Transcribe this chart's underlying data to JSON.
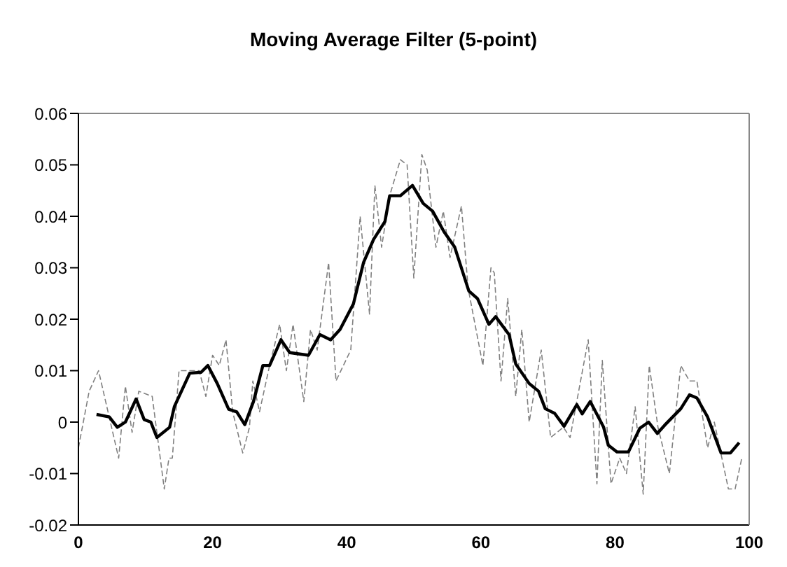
{
  "chart_data": {
    "type": "line",
    "title": "Moving Average Filter (5-point)",
    "xlim": [
      0,
      100
    ],
    "xticks": [
      0,
      20,
      40,
      60,
      80,
      100
    ],
    "ylim": [
      -0.02,
      0.06
    ],
    "yticks": [
      {
        "value": -0.02,
        "label": "-0.02"
      },
      {
        "value": -0.01,
        "label": "-0.01"
      },
      {
        "value": 0,
        "label": "0"
      },
      {
        "value": 0.01,
        "label": "0.01"
      },
      {
        "value": 0.02,
        "label": "0.02"
      },
      {
        "value": 0.03,
        "label": "0.03"
      },
      {
        "value": 0.04,
        "label": "0.04"
      },
      {
        "value": 0.05,
        "label": "0.05"
      },
      {
        "value": 0.06,
        "label": "0.06"
      }
    ],
    "grid": false,
    "legend": false,
    "marker": "none",
    "series": [
      {
        "color": "#808080",
        "line_style": "dashed",
        "x": [
          0,
          1.6,
          3,
          6,
          7,
          8,
          9,
          11,
          12.8,
          13.5,
          14,
          15,
          18,
          19,
          20,
          21,
          22,
          23,
          24.5,
          25.5,
          26,
          27,
          28.5,
          30,
          31,
          32,
          33.6,
          34.6,
          35.6,
          37.3,
          38.4,
          40.6,
          42,
          43.4,
          44.2,
          45.2,
          46.4,
          48,
          49,
          50,
          51.2,
          52,
          53.3,
          54.4,
          55.4,
          57.1,
          58.1,
          60.3,
          61.5,
          62,
          63,
          64,
          65.2,
          66.1,
          67.2,
          69,
          70.4,
          72.3,
          73.3,
          76,
          77.3,
          78.1,
          79.4,
          80.7,
          81.7,
          83,
          84.2,
          85.1,
          86.4,
          88.1,
          89.8,
          91.1,
          92.2,
          93.8,
          94.8,
          96.9,
          97.9,
          98.9
        ],
        "values": [
          -0.005,
          0.006,
          0.01,
          -0.007,
          0.007,
          -0.002,
          0.006,
          0.005,
          -0.013,
          -0.007,
          -0.007,
          0.01,
          0.01,
          0.005,
          0.013,
          0.011,
          0.016,
          0.002,
          -0.006,
          -0.001,
          0.008,
          0.002,
          0.011,
          0.019,
          0.01,
          0.019,
          0.004,
          0.018,
          0.014,
          0.031,
          0.008,
          0.014,
          0.04,
          0.021,
          0.046,
          0.034,
          0.044,
          0.051,
          0.05,
          0.028,
          0.052,
          0.049,
          0.034,
          0.041,
          0.032,
          0.042,
          0.026,
          0.011,
          0.03,
          0.029,
          0.008,
          0.024,
          0.005,
          0.018,
          0,
          0.014,
          -0.003,
          -0.001,
          -0.003,
          0.016,
          -0.012,
          0.012,
          -0.012,
          -0.007,
          -0.01,
          0.003,
          -0.014,
          0.011,
          -0.001,
          -0.01,
          0.011,
          0.008,
          0.008,
          -0.005,
          0,
          -0.013,
          -0.013,
          -0.007
        ]
      },
      {
        "color": "#000000",
        "line_style": "solid",
        "x": [
          2.7,
          4.6,
          5.8,
          7,
          8.6,
          9.8,
          10.8,
          11.7,
          13.6,
          14.3,
          16.6,
          18.3,
          19.3,
          20.7,
          22.4,
          23.6,
          24.8,
          26.1,
          27.5,
          28.5,
          30.2,
          31.5,
          34.3,
          36,
          37.6,
          39,
          41,
          42.5,
          44,
          45.7,
          46.4,
          48,
          49.8,
          51.4,
          52.8,
          54.5,
          56.1,
          58.2,
          59.5,
          61.2,
          62.2,
          64.2,
          65.2,
          67.2,
          68.6,
          69.6,
          71,
          72.4,
          74.3,
          75.1,
          76.3,
          78.3,
          79,
          80.3,
          82,
          83.7,
          85,
          86.3,
          87.4,
          89.8,
          91.1,
          92.2,
          93.8,
          95.8,
          97.2,
          98.5
        ],
        "values": [
          0.0015,
          0.001,
          -0.001,
          0,
          0.0045,
          0.0005,
          0,
          -0.003,
          -0.001,
          0.003,
          0.0095,
          0.0097,
          0.011,
          0.0075,
          0.0025,
          0.002,
          -0.0005,
          0.004,
          0.011,
          0.011,
          0.016,
          0.0135,
          0.013,
          0.017,
          0.016,
          0.018,
          0.023,
          0.031,
          0.0355,
          0.039,
          0.044,
          0.044,
          0.046,
          0.0425,
          0.041,
          0.037,
          0.034,
          0.0255,
          0.024,
          0.019,
          0.0205,
          0.017,
          0.0113,
          0.0075,
          0.006,
          0.0026,
          0.0017,
          -0.0008,
          0.0034,
          0.0016,
          0.004,
          -0.001,
          -0.0045,
          -0.0058,
          -0.0058,
          -0.0012,
          0,
          -0.0022,
          -0.0006,
          0.0026,
          0.0053,
          0.0047,
          0.001,
          -0.006,
          -0.006,
          -0.004
        ]
      }
    ]
  }
}
